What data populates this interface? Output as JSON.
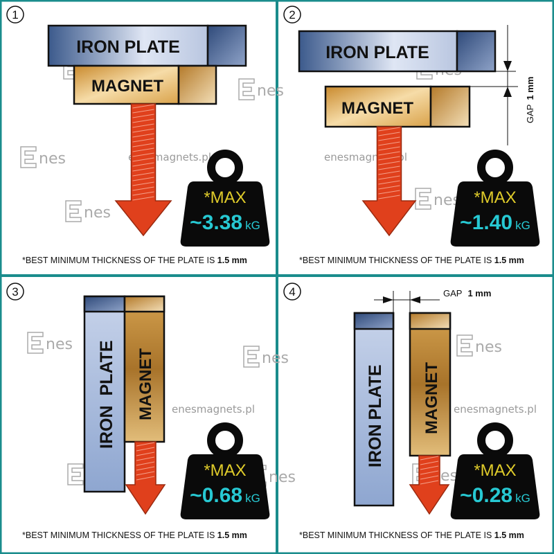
{
  "colors": {
    "divider": "#1a8c8c",
    "weight": "#0a0a0a",
    "max_text": "#e0cc2a",
    "value_text": "#27c9d3",
    "arrow": "#e0401c",
    "iron": "#3c5a8c",
    "magnet": "#c98a2e"
  },
  "watermark": {
    "site": "enesmagnets.pl",
    "logo": "Enes"
  },
  "labels": {
    "iron_plate": "IRON PLATE",
    "iron": "IRON",
    "plate": "PLATE",
    "magnet": "MAGNET",
    "max": "*MAX",
    "unit": "kG",
    "gap": "GAP",
    "gap_value": "1 mm"
  },
  "footer": {
    "text": "*BEST MINIMUM THICKNESS OF THE PLATE IS ",
    "thickness": "1.5 mm"
  },
  "panels": [
    {
      "number": "1",
      "value": "~3.38"
    },
    {
      "number": "2",
      "value": "~1.40"
    },
    {
      "number": "3",
      "value": "~0.68"
    },
    {
      "number": "4",
      "value": "~0.28"
    }
  ]
}
